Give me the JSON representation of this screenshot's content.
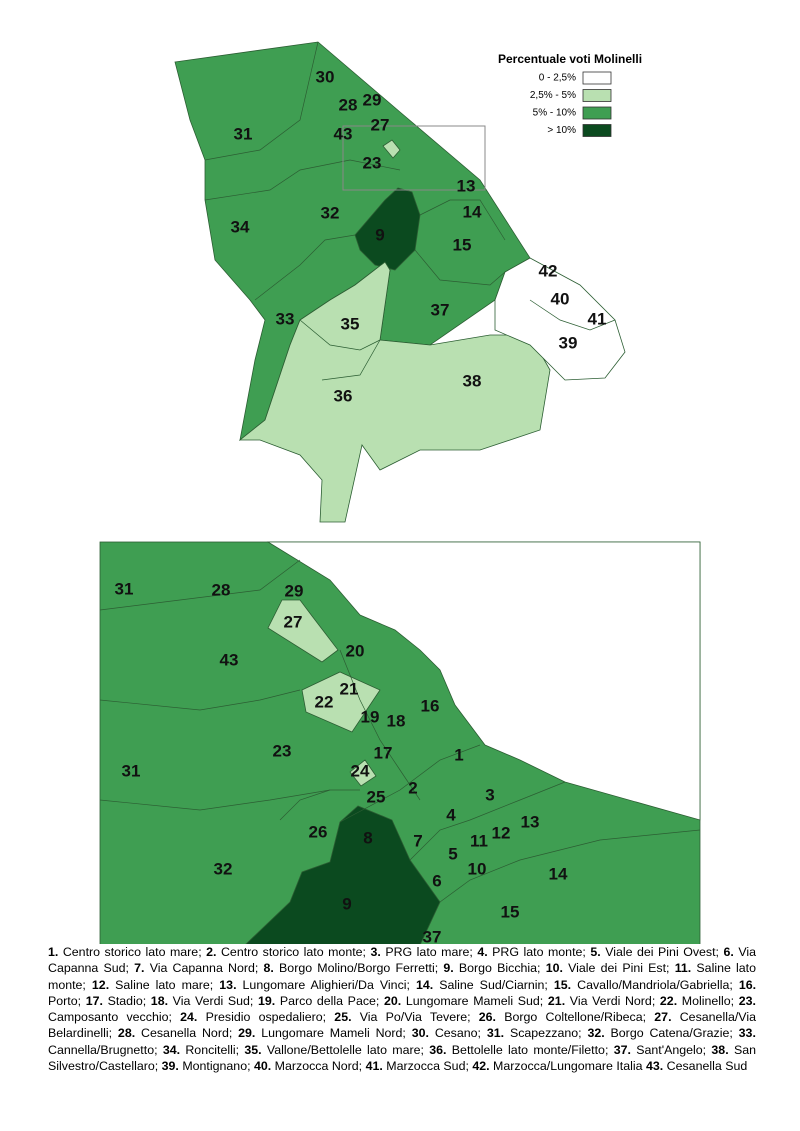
{
  "legend": {
    "title": "Percentuale voti Molinelli",
    "classes": [
      {
        "label": "0 - 2,5%",
        "color": "#ffffff"
      },
      {
        "label": "2,5% - 5%",
        "color": "#b9e0b1"
      },
      {
        "label": "5% - 10%",
        "color": "#3f9e52"
      },
      {
        "label": "> 10%",
        "color": "#0b4a1f"
      }
    ]
  },
  "map_labels": [
    "30",
    "29",
    "28",
    "31",
    "43",
    "27",
    "23",
    "13",
    "32",
    "14",
    "34",
    "9",
    "15",
    "42",
    "40",
    "41",
    "33",
    "35",
    "37",
    "39",
    "38",
    "36"
  ],
  "inset_labels": [
    "31",
    "28",
    "29",
    "27",
    "43",
    "20",
    "21",
    "22",
    "16",
    "19",
    "18",
    "17",
    "1",
    "23",
    "31",
    "24",
    "2",
    "25",
    "3",
    "4",
    "13",
    "12",
    "11",
    "26",
    "8",
    "7",
    "5",
    "10",
    "6",
    "14",
    "32",
    "9",
    "15",
    "37"
  ],
  "key": [
    {
      "n": "1.",
      "t": "Centro storico lato mare;"
    },
    {
      "n": "2.",
      "t": "Centro storico lato monte;"
    },
    {
      "n": "3.",
      "t": "PRG lato mare;"
    },
    {
      "n": "4.",
      "t": "PRG lato monte;"
    },
    {
      "n": "5.",
      "t": "Viale dei Pini Ovest;"
    },
    {
      "n": "6.",
      "t": "Via Capanna Sud;"
    },
    {
      "n": "7.",
      "t": "Via Capanna Nord;"
    },
    {
      "n": "8.",
      "t": "Borgo Molino/Borgo Ferretti;"
    },
    {
      "n": "9.",
      "t": "Borgo Bicchia;"
    },
    {
      "n": "10.",
      "t": "Viale dei Pini Est;"
    },
    {
      "n": "11.",
      "t": "Saline lato monte;"
    },
    {
      "n": "12.",
      "t": "Saline lato mare;"
    },
    {
      "n": "13.",
      "t": "Lungomare Alighieri/Da Vinci;"
    },
    {
      "n": "14.",
      "t": "Saline Sud/Ciarnin;"
    },
    {
      "n": "15.",
      "t": "Cavallo/Mandriola/Gabriella;"
    },
    {
      "n": "16.",
      "t": "Porto;"
    },
    {
      "n": "17.",
      "t": "Stadio;"
    },
    {
      "n": "18.",
      "t": "Via Verdi Sud;"
    },
    {
      "n": "19.",
      "t": "Parco della Pace;"
    },
    {
      "n": "20.",
      "t": "Lungomare Mameli Sud;"
    },
    {
      "n": "21.",
      "t": "Via Verdi Nord;"
    },
    {
      "n": "22.",
      "t": "Molinello;"
    },
    {
      "n": "23.",
      "t": "Camposanto vecchio;"
    },
    {
      "n": "24.",
      "t": "Presidio ospedaliero;"
    },
    {
      "n": "25.",
      "t": "Via Po/Via Tevere;"
    },
    {
      "n": "26.",
      "t": "Borgo Coltellone/Ribeca;"
    },
    {
      "n": "27.",
      "t": "Cesanella/Via Belardinelli;"
    },
    {
      "n": "28.",
      "t": "Cesanella Nord;"
    },
    {
      "n": "29.",
      "t": "Lungomare Mameli Nord;"
    },
    {
      "n": "30.",
      "t": "Cesano;"
    },
    {
      "n": "31.",
      "t": "Scapezzano;"
    },
    {
      "n": "32.",
      "t": "Borgo Catena/Grazie;"
    },
    {
      "n": "33.",
      "t": "Cannella/Brugnetto;"
    },
    {
      "n": "34.",
      "t": "Roncitelli;"
    },
    {
      "n": "35.",
      "t": "Vallone/Bettolelle lato mare;"
    },
    {
      "n": "36.",
      "t": "Bettolelle lato monte/Filetto;"
    },
    {
      "n": "37.",
      "t": "Sant'Angelo;"
    },
    {
      "n": "38.",
      "t": "San Silvestro/Castellaro;"
    },
    {
      "n": "39.",
      "t": "Montignano;"
    },
    {
      "n": "40.",
      "t": "Marzocca Nord;"
    },
    {
      "n": "41.",
      "t": "Marzocca Sud;"
    },
    {
      "n": "42.",
      "t": "Marzocca/Lungomare Italia"
    },
    {
      "n": "43.",
      "t": "Cesanella Sud"
    }
  ]
}
